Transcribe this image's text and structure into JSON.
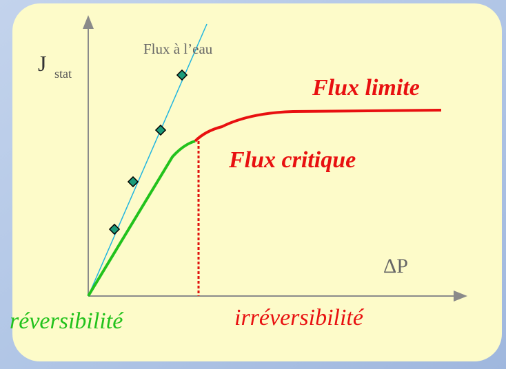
{
  "y_axis_label": {
    "main": "J",
    "sub": "stat"
  },
  "x_axis_label": "ΔP",
  "water_flux_label": "Flux à l’eau",
  "limit_flux_label": "Flux limite",
  "critical_flux_label": "Flux critique",
  "left_zone_label": "réversibilité",
  "right_zone_label": "irréversibilité"
}
